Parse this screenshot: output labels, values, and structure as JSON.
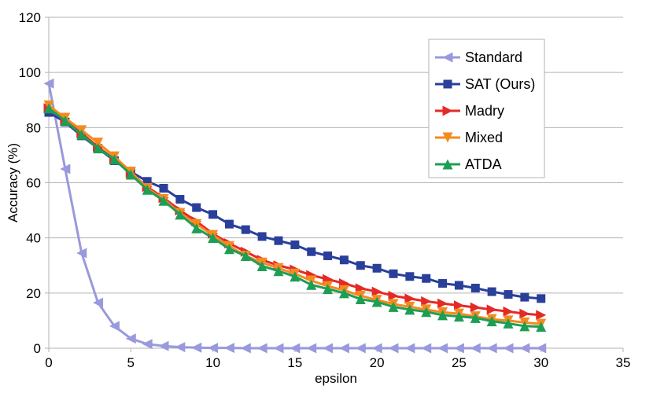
{
  "chart_data": {
    "type": "line",
    "title": "",
    "xlabel": "epsilon",
    "ylabel": "Accuracy (%)",
    "xlim": [
      0,
      35
    ],
    "ylim": [
      0,
      120
    ],
    "xticks": [
      0,
      5,
      10,
      15,
      20,
      25,
      30,
      35
    ],
    "yticks": [
      0,
      20,
      40,
      60,
      80,
      100,
      120
    ],
    "grid": "horizontal",
    "legend_position": "top-right",
    "x": [
      0,
      1,
      2,
      3,
      4,
      5,
      6,
      7,
      8,
      9,
      10,
      11,
      12,
      13,
      14,
      15,
      16,
      17,
      18,
      19,
      20,
      21,
      22,
      23,
      24,
      25,
      26,
      27,
      28,
      29,
      30
    ],
    "series": [
      {
        "name": "Standard",
        "color": "#9999dd",
        "marker": "triangle-left",
        "values": [
          96,
          65,
          34.5,
          16.5,
          8,
          3.5,
          1.5,
          0.8,
          0.4,
          0.2,
          0.1,
          0.1,
          0,
          0,
          0,
          0,
          0,
          0,
          0,
          0,
          0,
          0,
          0,
          0,
          0,
          0,
          0,
          0,
          0,
          0,
          0
        ]
      },
      {
        "name": "SAT (Ours)",
        "color": "#2a3f9a",
        "marker": "square",
        "values": [
          85.5,
          82,
          77,
          72.5,
          68,
          64,
          60.5,
          58,
          54,
          51,
          48.5,
          45,
          43,
          40.5,
          39,
          37.5,
          35,
          33.5,
          32,
          30,
          29,
          27,
          26,
          25.3,
          23.5,
          22.8,
          21.8,
          20.5,
          19.5,
          18.5,
          18
        ]
      },
      {
        "name": "Madry",
        "color": "#e42a26",
        "marker": "triangle-right",
        "values": [
          87,
          82.5,
          78,
          73,
          68.5,
          63.5,
          58.5,
          54.5,
          50,
          46,
          41.5,
          38,
          35,
          32,
          30,
          28.5,
          26.5,
          25,
          23.5,
          21.7,
          20.5,
          19,
          18,
          17,
          16.2,
          15.5,
          14.8,
          14,
          13.3,
          12.5,
          12
        ]
      },
      {
        "name": "Mixed",
        "color": "#f58a1f",
        "marker": "triangle-down",
        "values": [
          88,
          83.5,
          79,
          74.5,
          69.5,
          64,
          58,
          54,
          49,
          45,
          41,
          37,
          33.5,
          31,
          29,
          27,
          24.5,
          22.5,
          21,
          19,
          17.5,
          16,
          15,
          14,
          13,
          12.5,
          11.5,
          10.5,
          10,
          9.3,
          8.8
        ]
      },
      {
        "name": "ATDA",
        "color": "#1e9e55",
        "marker": "triangle-up",
        "values": [
          87,
          82.5,
          77.5,
          72.5,
          68.5,
          63,
          57.5,
          53.5,
          48.5,
          43.5,
          40,
          36,
          33.5,
          29.8,
          28,
          26,
          23,
          21.5,
          20,
          17.8,
          16.8,
          15,
          14,
          13.2,
          12,
          11.5,
          11,
          9.8,
          9,
          8,
          7.8
        ]
      }
    ]
  }
}
